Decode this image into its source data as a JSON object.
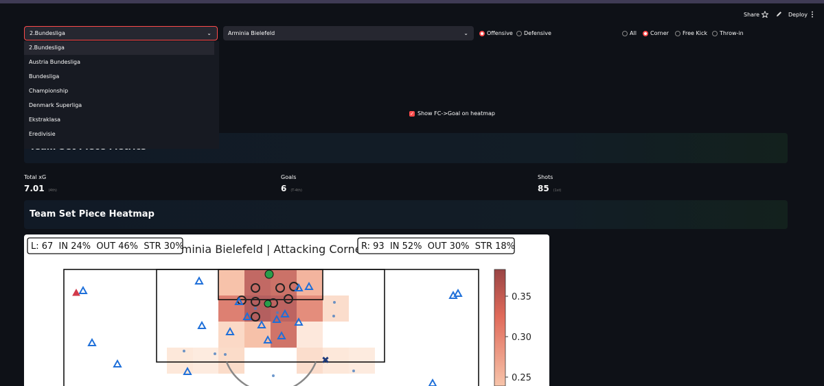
{
  "header": {
    "share": "Share",
    "deploy": "Deploy"
  },
  "controls": {
    "league_select": "2.Bundesliga",
    "league_options": [
      "2.Bundesliga",
      "Austria Bundesliga",
      "Bundesliga",
      "Championship",
      "Denmark Superliga",
      "Ekstraklasa",
      "Eredivisie"
    ],
    "team_select": "Arminia Bielefeld",
    "side_radio": [
      {
        "label": "Offensive",
        "selected": true
      },
      {
        "label": "Defensive",
        "selected": false
      }
    ],
    "type_radio": [
      {
        "label": "All",
        "selected": false
      },
      {
        "label": "Corner",
        "selected": true
      },
      {
        "label": "Free Kick",
        "selected": false
      },
      {
        "label": "Throw-in",
        "selected": false
      }
    ],
    "checkbox": {
      "label": "Show FC->Goal on heatmap",
      "checked": true
    }
  },
  "metrics_section": {
    "title": "Team Set Piece Metrics",
    "metrics": [
      {
        "label": "Total xG",
        "value": 7.01,
        "rank": "(4th)"
      },
      {
        "label": "Goals",
        "value": 6,
        "rank": "(T-4th)"
      },
      {
        "label": "Shots",
        "value": 85,
        "rank": "(1st)"
      }
    ]
  },
  "heatmap_section": {
    "title": "Team Set Piece Heatmap",
    "chart_title": "Arminia Bielefeld | Attacking Corners",
    "left_box": "L: 67  IN 24%  OUT 46%  STR 30%",
    "right_box": "R: 93  IN 52%  OUT 30%  STR 18%",
    "colorbar_ticks": [
      "0.35",
      "0.30",
      "0.25"
    ]
  }
}
